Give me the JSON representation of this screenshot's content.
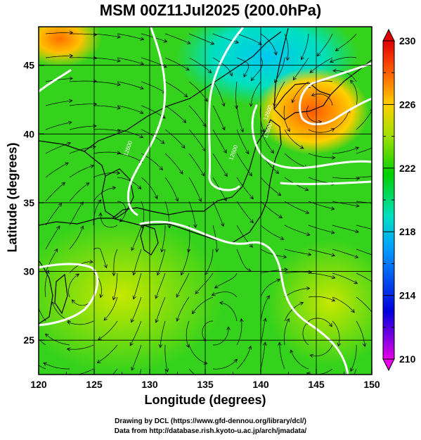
{
  "title": "MSM 00Z11Jul2025 (200.0hPa)",
  "map": {
    "xlabel": "Longitude (degrees)",
    "ylabel": "Latitude  (degrees)",
    "x_ticks": [
      "120",
      "125",
      "130",
      "135",
      "140",
      "145",
      "150"
    ],
    "y_ticks": [
      "25",
      "30",
      "35",
      "40",
      "45"
    ],
    "x_range": [
      120,
      150
    ],
    "y_range": [
      22.5,
      47.8
    ],
    "grid": true
  },
  "colorbar": {
    "ticks": [
      "210",
      "214",
      "218",
      "222",
      "226",
      "230"
    ],
    "range": [
      210,
      230
    ],
    "colors": [
      "#e600e6",
      "#0000dd",
      "#00a0ff",
      "#00e0c0",
      "#00d000",
      "#a0e000",
      "#ffd000",
      "#ff6000",
      "#e00000"
    ]
  },
  "contour_labels": [
    {
      "text": "12600",
      "lon": 128.2,
      "lat": 38.9
    },
    {
      "text": "12600",
      "lon": 137.7,
      "lat": 38.6
    },
    {
      "text": "12600",
      "lon": 140.8,
      "lat": 40.2
    },
    {
      "text": "12600",
      "lon": 140.8,
      "lat": 41.5
    }
  ],
  "credits": {
    "line1": "Drawing by DCL (https://www.gfd-dennou.org/library/dcl/)",
    "line2": "Data from http://database.rish.kyoto-u.ac.jp/arch/jmadata/"
  }
}
